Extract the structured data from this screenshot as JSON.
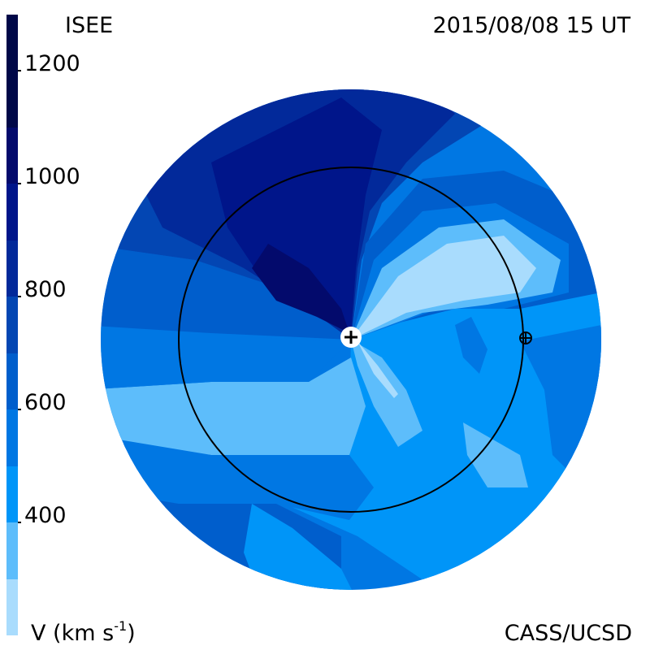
{
  "header": {
    "left_title": "ISEE",
    "right_title": "2015/08/08 15 UT"
  },
  "footer": {
    "units_label_main": "V (km s",
    "units_label_exp": "-1",
    "units_label_close": ")",
    "credit": "CASS/UCSD"
  },
  "colorbar": {
    "quantity": "solar wind velocity",
    "min": 200,
    "max": 1300,
    "tick_labels": [
      "400",
      "600",
      "800",
      "1000",
      "1200"
    ],
    "levels": [
      {
        "from": 200,
        "to": 300,
        "color": "#a9dcfd"
      },
      {
        "from": 300,
        "to": 400,
        "color": "#5dbdfb"
      },
      {
        "from": 400,
        "to": 500,
        "color": "#0095f8"
      },
      {
        "from": 500,
        "to": 600,
        "color": "#0077e3"
      },
      {
        "from": 600,
        "to": 700,
        "color": "#005ecc"
      },
      {
        "from": 700,
        "to": 800,
        "color": "#0346b3"
      },
      {
        "from": 800,
        "to": 900,
        "color": "#02299a"
      },
      {
        "from": 900,
        "to": 1000,
        "color": "#00158a"
      },
      {
        "from": 1000,
        "to": 1100,
        "color": "#030a6c"
      },
      {
        "from": 1100,
        "to": 1300,
        "color": "#000848"
      }
    ]
  },
  "map": {
    "sun_symbol": "+",
    "earth_symbol": "⊕",
    "earth_orbit_radius_au": 1.0
  }
}
